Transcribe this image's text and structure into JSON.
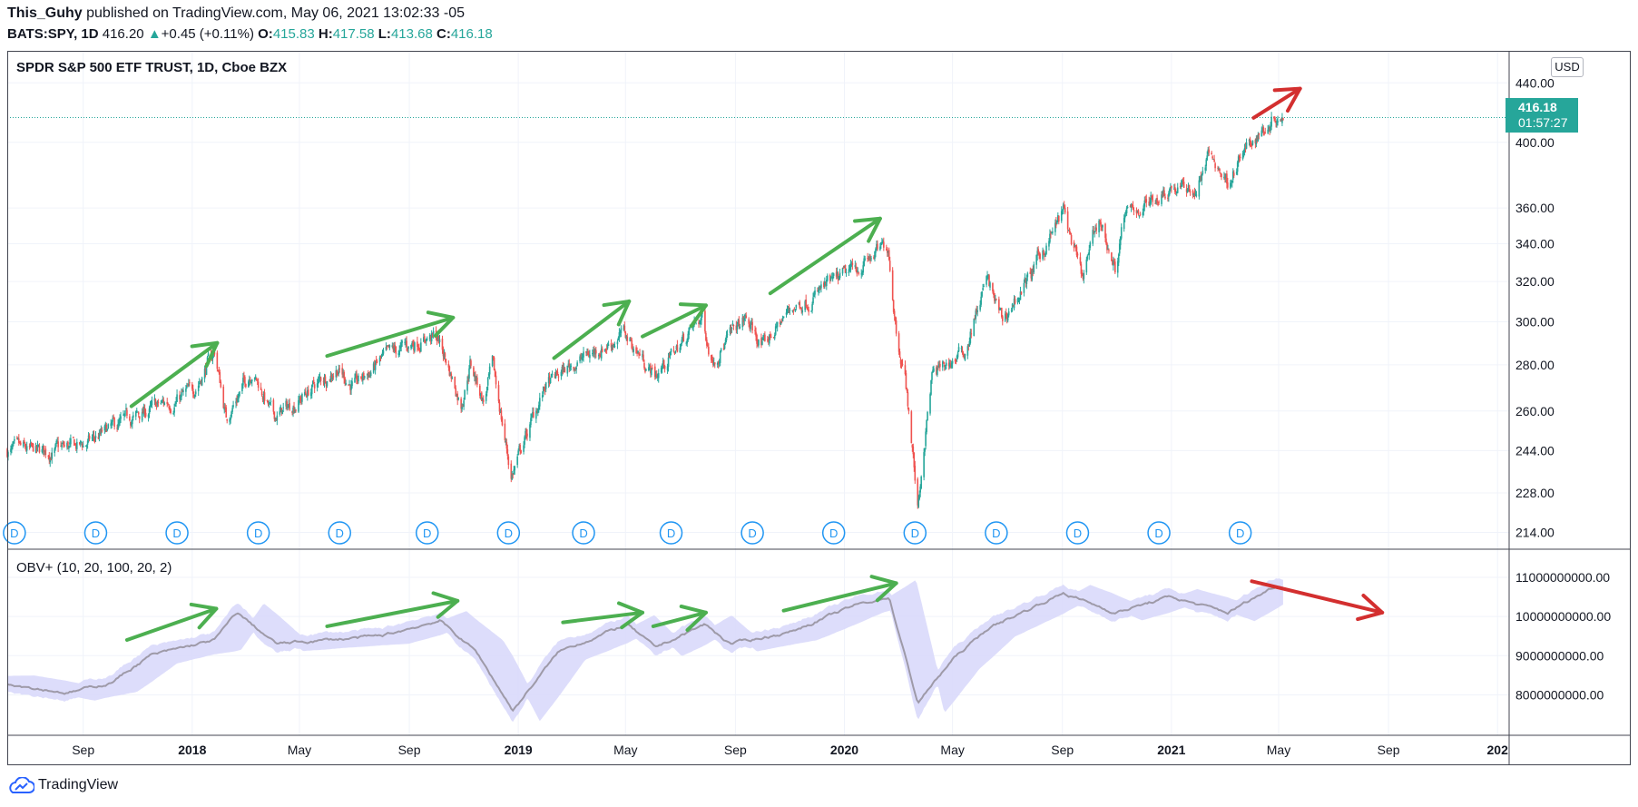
{
  "header": {
    "user": "This_Guhy",
    "published": " published on TradingView.com, May 06, 2021 13:02:33 -05",
    "symbol": "BATS:SPY, 1D",
    "last": "416.20",
    "change": "+0.45 (+0.11%)",
    "open_label": "O:",
    "open": "415.83",
    "high_label": "H:",
    "high": "417.58",
    "low_label": "L:",
    "low": "413.68",
    "close_label": "C:",
    "close": "416.18"
  },
  "price_pane": {
    "title": "SPDR S&P 500 ETF TRUST, 1D, Cboe BZX",
    "currency": "USD",
    "last_price_label": "416.18",
    "countdown": "01:57:27"
  },
  "obv_pane": {
    "title": "OBV+ (10, 20, 100, 20, 2)"
  },
  "footer": {
    "brand": "TradingView"
  },
  "colors": {
    "up": "#26a69a",
    "down": "#ef5350",
    "obv_line": "#9e9aa8",
    "obv_band": "#d9d9fb",
    "green_arrow": "#4caf50",
    "red_arrow": "#d32f2f",
    "dividend_marker": "#2196f3",
    "grid": "#f0f3fa"
  },
  "icons": {
    "dividend": "D-circle-icon",
    "brand": "tradingview-cloud-icon"
  },
  "chart_data": [
    {
      "type": "candlestick",
      "title": "SPDR S&P 500 ETF TRUST, 1D, Cboe BZX",
      "scale": "log",
      "ylim": [
        212,
        446
      ],
      "y_ticks": [
        "214.00",
        "228.00",
        "244.00",
        "260.00",
        "280.00",
        "300.00",
        "320.00",
        "340.00",
        "360.00",
        "400.00",
        "440.00"
      ],
      "x_ticks": [
        "Sep",
        "2018",
        "May",
        "Sep",
        "2019",
        "May",
        "Sep",
        "2020",
        "May",
        "Sep",
        "2021",
        "May",
        "Sep",
        "202"
      ],
      "x_range": [
        "2017-06-08",
        "2022-01-14"
      ],
      "last_price": 416.18,
      "approx_path": [
        [
          "2017-06-08",
          244
        ],
        [
          "2017-07-15",
          243
        ],
        [
          "2017-09-01",
          246
        ],
        [
          "2017-11-01",
          258
        ],
        [
          "2018-01-01",
          268
        ],
        [
          "2018-01-26",
          286
        ],
        [
          "2018-02-08",
          257
        ],
        [
          "2018-03-09",
          278
        ],
        [
          "2018-04-02",
          257
        ],
        [
          "2018-05-01",
          265
        ],
        [
          "2018-06-12",
          279
        ],
        [
          "2018-07-01",
          270
        ],
        [
          "2018-08-01",
          282
        ],
        [
          "2018-09-20",
          293
        ],
        [
          "2018-10-03",
          292
        ],
        [
          "2018-10-29",
          263
        ],
        [
          "2018-11-08",
          281
        ],
        [
          "2018-11-23",
          264
        ],
        [
          "2018-12-03",
          279
        ],
        [
          "2018-12-24",
          234
        ],
        [
          "2019-01-31",
          270
        ],
        [
          "2019-03-01",
          280
        ],
        [
          "2019-04-30",
          294
        ],
        [
          "2019-06-03",
          275
        ],
        [
          "2019-07-26",
          302
        ],
        [
          "2019-08-05",
          283
        ],
        [
          "2019-09-12",
          301
        ],
        [
          "2019-10-02",
          288
        ],
        [
          "2019-11-01",
          306
        ],
        [
          "2019-12-31",
          322
        ],
        [
          "2020-02-19",
          339
        ],
        [
          "2020-02-28",
          296
        ],
        [
          "2020-03-09",
          275
        ],
        [
          "2020-03-23",
          222
        ],
        [
          "2020-04-08",
          275
        ],
        [
          "2020-05-15",
          286
        ],
        [
          "2020-06-08",
          321
        ],
        [
          "2020-06-26",
          300
        ],
        [
          "2020-08-01",
          327
        ],
        [
          "2020-09-02",
          358
        ],
        [
          "2020-09-23",
          320
        ],
        [
          "2020-10-12",
          354
        ],
        [
          "2020-10-30",
          326
        ],
        [
          "2020-11-09",
          354
        ],
        [
          "2020-12-31",
          373
        ],
        [
          "2021-01-29",
          370
        ],
        [
          "2021-02-12",
          392
        ],
        [
          "2021-03-04",
          376
        ],
        [
          "2021-04-01",
          400
        ],
        [
          "2021-04-29",
          419
        ],
        [
          "2021-05-06",
          416.18
        ]
      ],
      "dividend_markers": [
        "2017-06-16",
        "2017-09-15",
        "2017-12-15",
        "2018-03-16",
        "2018-06-15",
        "2018-09-21",
        "2018-12-21",
        "2019-03-15",
        "2019-06-21",
        "2019-09-20",
        "2019-12-20",
        "2020-03-20",
        "2020-06-19",
        "2020-09-18",
        "2020-12-18",
        "2021-03-19"
      ],
      "annotations": [
        {
          "color": "green",
          "from": [
            "2017-10-25",
            262
          ],
          "to": [
            "2018-01-29",
            290
          ]
        },
        {
          "color": "green",
          "from": [
            "2018-06-01",
            284
          ],
          "to": [
            "2018-10-20",
            302
          ]
        },
        {
          "color": "green",
          "from": [
            "2019-02-10",
            283
          ],
          "to": [
            "2019-05-05",
            310
          ]
        },
        {
          "color": "green",
          "from": [
            "2019-05-20",
            293
          ],
          "to": [
            "2019-07-30",
            308
          ]
        },
        {
          "color": "green",
          "from": [
            "2019-10-10",
            314
          ],
          "to": [
            "2020-02-10",
            354
          ]
        },
        {
          "color": "red",
          "from": [
            "2021-04-03",
            416
          ],
          "to": [
            "2021-05-25",
            436
          ]
        }
      ]
    },
    {
      "type": "line",
      "title": "OBV+ (10, 20, 100, 20, 2)",
      "ylim": [
        7200000000,
        11300000000
      ],
      "y_ticks": [
        "8000000000.00",
        "9000000000.00",
        "10000000000.00",
        "11000000000.00"
      ],
      "series": [
        {
          "values_approx": [
            [
              "2017-06-08",
              8300000000.0
            ],
            [
              "2017-08-15",
              8050000000.0
            ],
            [
              "2017-10-01",
              8300000000.0
            ],
            [
              "2017-11-15",
              9000000000.0
            ],
            [
              "2018-01-26",
              9400000000.0
            ],
            [
              "2018-02-20",
              10100000000.0
            ],
            [
              "2018-04-05",
              9300000000.0
            ],
            [
              "2018-06-01",
              9400000000.0
            ],
            [
              "2018-08-01",
              9500000000.0
            ],
            [
              "2018-10-05",
              9900000000.0
            ],
            [
              "2018-11-15",
              9100000000.0
            ],
            [
              "2018-12-26",
              7600000000.0
            ],
            [
              "2019-02-15",
              9100000000.0
            ],
            [
              "2019-05-03",
              9800000000.0
            ],
            [
              "2019-06-03",
              9200000000.0
            ],
            [
              "2019-07-29",
              9800000000.0
            ],
            [
              "2019-08-26",
              9300000000.0
            ],
            [
              "2019-11-01",
              9600000000.0
            ],
            [
              "2020-01-15",
              10300000000.0
            ],
            [
              "2020-02-20",
              10500000000.0
            ],
            [
              "2020-03-23",
              7800000000.0
            ],
            [
              "2020-05-01",
              8900000000.0
            ],
            [
              "2020-06-10",
              9700000000.0
            ],
            [
              "2020-09-02",
              10600000000.0
            ],
            [
              "2020-10-30",
              10100000000.0
            ],
            [
              "2020-12-31",
              10500000000.0
            ],
            [
              "2021-03-05",
              10100000000.0
            ],
            [
              "2021-04-29",
              10800000000.0
            ],
            [
              "2021-05-06",
              10750000000.0
            ]
          ]
        }
      ],
      "annotations": [
        {
          "color": "green",
          "from": [
            "2017-10-20",
            9400000000.0
          ],
          "to": [
            "2018-01-28",
            10200000000.0
          ]
        },
        {
          "color": "green",
          "from": [
            "2018-06-01",
            9750000000.0
          ],
          "to": [
            "2018-10-25",
            10400000000.0
          ]
        },
        {
          "color": "green",
          "from": [
            "2019-02-20",
            9850000000.0
          ],
          "to": [
            "2019-05-20",
            10100000000.0
          ]
        },
        {
          "color": "green",
          "from": [
            "2019-06-01",
            9750000000.0
          ],
          "to": [
            "2019-07-30",
            10100000000.0
          ]
        },
        {
          "color": "green",
          "from": [
            "2019-10-25",
            10150000000.0
          ],
          "to": [
            "2020-02-28",
            10850000000.0
          ]
        },
        {
          "color": "red",
          "from": [
            "2021-04-01",
            10900000000.0
          ],
          "to": [
            "2021-08-25",
            10100000000.0
          ]
        }
      ]
    }
  ]
}
